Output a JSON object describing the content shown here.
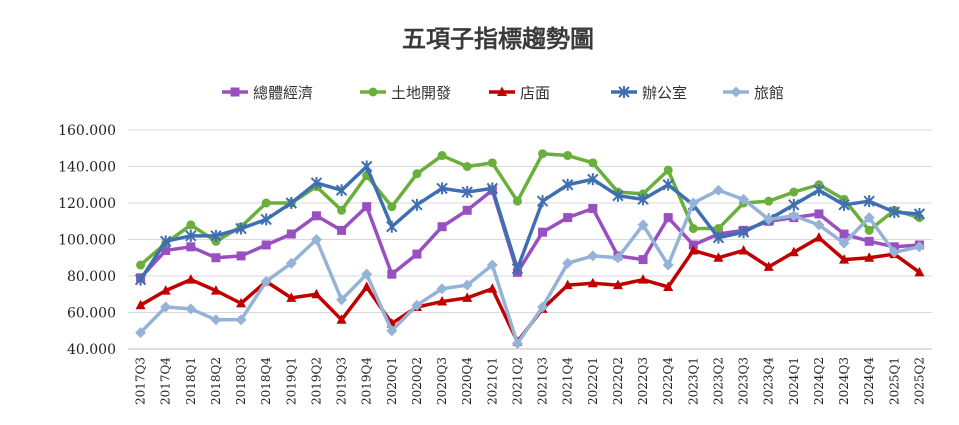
{
  "chart_data": {
    "type": "line",
    "title": "五項子指標趨勢圖",
    "xlabel": "",
    "ylabel": "",
    "ylim": [
      40,
      160
    ],
    "yticks": [
      "40.000",
      "60.000",
      "80.000",
      "100.000",
      "120.000",
      "140.000",
      "160.000"
    ],
    "grid": true,
    "legend_position": "top",
    "categories": [
      "2017Q3",
      "2017Q4",
      "2018Q1",
      "2018Q2",
      "2018Q3",
      "2018Q4",
      "2019Q1",
      "2019Q2",
      "2019Q3",
      "2019Q4",
      "2020Q1",
      "2020Q2",
      "2020Q3",
      "2020Q4",
      "2021Q1",
      "2021Q2",
      "2021Q3",
      "2021Q4",
      "2022Q1",
      "2022Q2",
      "2022Q3",
      "2022Q4",
      "2023Q1",
      "2023Q2",
      "2023Q3",
      "2023Q4",
      "2024Q1",
      "2024Q2",
      "2024Q3",
      "2024Q4",
      "2025Q1",
      "2025Q2"
    ],
    "series": [
      {
        "name": "總體經濟",
        "color": "#9a4fc0",
        "marker": "square",
        "values": [
          79,
          94,
          96,
          90,
          91,
          97,
          103,
          113,
          105,
          118,
          81,
          92,
          107,
          116,
          127,
          82,
          104,
          112,
          117,
          91,
          89,
          112,
          97,
          103,
          105,
          110,
          112,
          114,
          103,
          99,
          96,
          97
        ]
      },
      {
        "name": "土地開發",
        "color": "#6aaf3c",
        "marker": "circle",
        "values": [
          86,
          98,
          108,
          99,
          107,
          120,
          120,
          129,
          116,
          135,
          118,
          136,
          146,
          140,
          142,
          121,
          147,
          146,
          142,
          126,
          125,
          138,
          106,
          106,
          120,
          121,
          126,
          130,
          122,
          105,
          116,
          112
        ]
      },
      {
        "name": "店面",
        "color": "#c00000",
        "marker": "triangle",
        "values": [
          64,
          72,
          78,
          72,
          65,
          77,
          68,
          70,
          56,
          74,
          54,
          63,
          66,
          68,
          73,
          44,
          62,
          75,
          76,
          75,
          78,
          74,
          94,
          90,
          94,
          85,
          93,
          101,
          89,
          90,
          92,
          82
        ]
      },
      {
        "name": "辦公室",
        "color": "#3f6fb0",
        "marker": "star",
        "values": [
          78,
          99,
          102,
          102,
          106,
          111,
          120,
          131,
          127,
          140,
          107,
          119,
          128,
          126,
          128,
          84,
          121,
          130,
          133,
          124,
          122,
          130,
          119,
          101,
          104,
          111,
          119,
          127,
          119,
          121,
          115,
          114
        ]
      },
      {
        "name": "旅館",
        "color": "#95b3d7",
        "marker": "diamond",
        "values": [
          49,
          63,
          62,
          56,
          56,
          77,
          87,
          100,
          67,
          81,
          50,
          64,
          73,
          75,
          86,
          43,
          63,
          87,
          91,
          90,
          108,
          86,
          120,
          127,
          122,
          111,
          113,
          108,
          98,
          112,
          93,
          96
        ]
      }
    ]
  }
}
